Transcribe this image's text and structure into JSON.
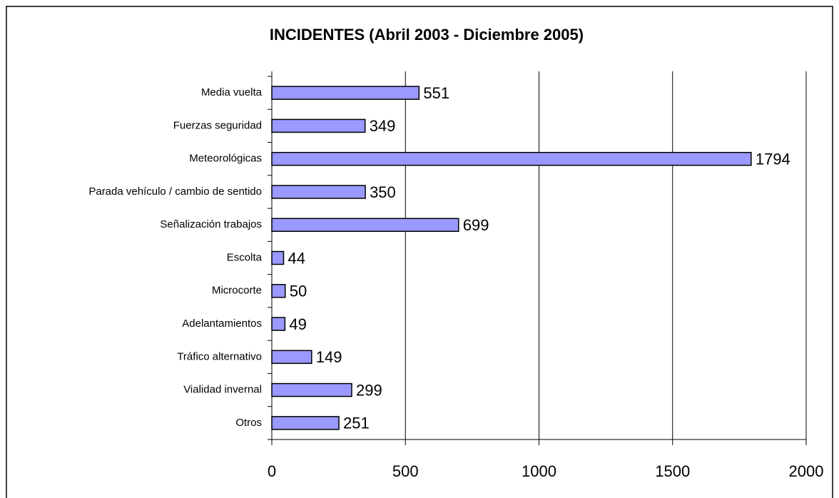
{
  "chart_data": {
    "type": "bar",
    "orientation": "horizontal",
    "title": "INCIDENTES (Abril 2003 - Diciembre 2005)",
    "categories": [
      "Media vuelta",
      "Fuerzas seguridad",
      "Meteorológicas",
      "Parada vehículo / cambio de sentido",
      "Señalización trabajos",
      "Escolta",
      "Microcorte",
      "Adelantamientos",
      "Tráfico alternativo",
      "Vialidad invernal",
      "Otros"
    ],
    "values": [
      551,
      349,
      1794,
      350,
      699,
      44,
      50,
      49,
      149,
      299,
      251
    ],
    "color": "#9999ff",
    "xlim": [
      0,
      2000
    ],
    "xticks": [
      0,
      500,
      1000,
      1500,
      2000
    ],
    "grid": true
  }
}
